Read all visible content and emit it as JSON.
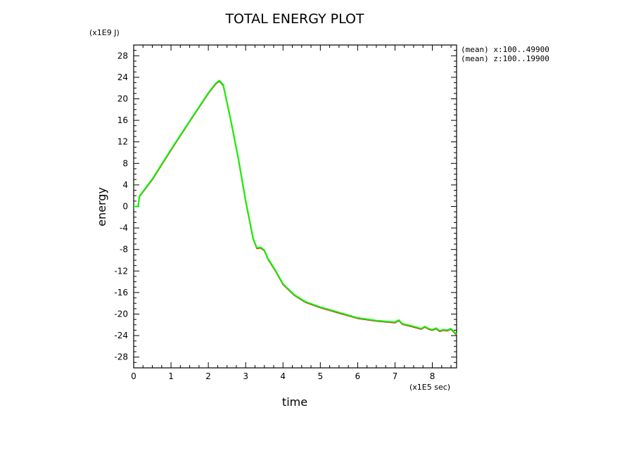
{
  "chart_data": {
    "type": "line",
    "title": "TOTAL ENERGY PLOT",
    "xlabel": "time",
    "ylabel": "energy",
    "x_unit": "(x1E5 sec)",
    "y_unit": "(x1E9 J)",
    "xlim": [
      0,
      8.65
    ],
    "ylim": [
      -30,
      30
    ],
    "x_ticks": [
      0,
      1,
      2,
      3,
      4,
      5,
      6,
      7,
      8
    ],
    "y_ticks": [
      28,
      24,
      20,
      16,
      12,
      8,
      4,
      0,
      -4,
      -8,
      -12,
      -16,
      -20,
      -24,
      -28
    ],
    "annotations": [
      "(mean) x:100..49900",
      "(mean) z:100..19900"
    ],
    "grid": false,
    "series": [
      {
        "color": "#ff0000",
        "x": [
          0,
          0.12,
          0.15,
          0.5,
          1.0,
          1.5,
          2.0,
          2.2,
          2.3,
          2.4,
          2.6,
          2.8,
          3.0,
          3.2,
          3.3,
          3.4,
          3.5,
          3.6,
          3.8,
          4.0,
          4.3,
          4.6,
          5.0,
          5.5,
          6.0,
          6.5,
          7.0,
          7.1,
          7.2,
          7.5,
          7.7,
          7.8,
          7.9,
          8.0,
          8.1,
          8.2,
          8.3,
          8.4,
          8.5,
          8.65
        ],
        "y": [
          0,
          0,
          1.8,
          5,
          10.5,
          15.8,
          21,
          22.8,
          23.3,
          22.5,
          16,
          9,
          1,
          -6,
          -7.8,
          -7.7,
          -8.2,
          -9.8,
          -12,
          -14.5,
          -16.5,
          -17.8,
          -18.8,
          -19.8,
          -20.8,
          -21.3,
          -21.6,
          -21.2,
          -21.9,
          -22.4,
          -22.8,
          -22.4,
          -22.8,
          -23.0,
          -22.7,
          -23.2,
          -23.0,
          -23.1,
          -22.8,
          -23.9
        ]
      },
      {
        "color": "#00ff00",
        "x": [
          0,
          0.12,
          0.15,
          0.5,
          1.0,
          1.5,
          2.0,
          2.2,
          2.3,
          2.4,
          2.6,
          2.8,
          3.0,
          3.2,
          3.3,
          3.4,
          3.5,
          3.6,
          3.8,
          4.0,
          4.3,
          4.6,
          5.0,
          5.5,
          6.0,
          6.5,
          7.0,
          7.1,
          7.2,
          7.5,
          7.7,
          7.8,
          7.9,
          8.0,
          8.1,
          8.2,
          8.3,
          8.4,
          8.5,
          8.65
        ],
        "y": [
          0,
          0,
          1.9,
          5.1,
          10.6,
          15.9,
          21.1,
          22.9,
          23.4,
          22.6,
          16.1,
          9.1,
          1.1,
          -5.9,
          -7.7,
          -7.6,
          -8.1,
          -9.7,
          -11.9,
          -14.4,
          -16.4,
          -17.7,
          -18.7,
          -19.7,
          -20.7,
          -21.2,
          -21.5,
          -21.1,
          -21.8,
          -22.3,
          -22.7,
          -22.3,
          -22.7,
          -22.9,
          -22.6,
          -23.1,
          -22.9,
          -23.0,
          -22.7,
          -23.8
        ]
      }
    ]
  }
}
